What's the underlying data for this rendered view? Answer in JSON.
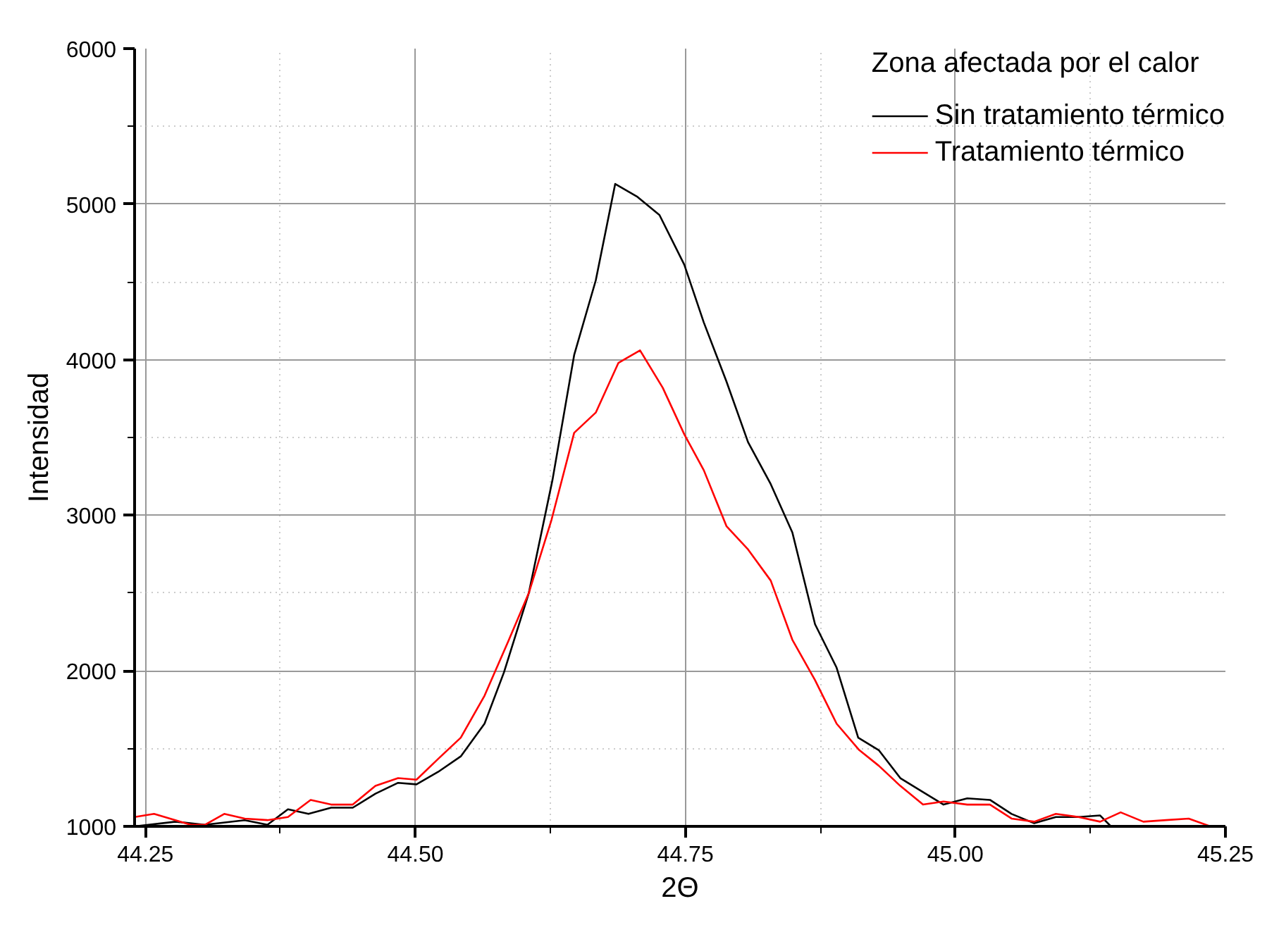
{
  "chart_data": {
    "type": "line",
    "xlabel": "2Θ",
    "ylabel": "Intensidad",
    "legend_title": "Zona afectada por el calor",
    "xlim": [
      44.24,
      45.25
    ],
    "ylim": [
      1000,
      6000
    ],
    "xticks": [
      {
        "value": 44.25,
        "label": "44.25"
      },
      {
        "value": 44.5,
        "label": "44.50"
      },
      {
        "value": 44.75,
        "label": "44.75"
      },
      {
        "value": 45.0,
        "label": "45.00"
      },
      {
        "value": 45.25,
        "label": "45.25"
      }
    ],
    "yticks": [
      1000,
      2000,
      3000,
      4000,
      5000,
      6000
    ],
    "grid": true,
    "legend": "top right",
    "marker": "none",
    "line_style": "solid",
    "series": [
      {
        "name": "Sin tratamiento térmico",
        "color": "#000000",
        "x": [
          44.24,
          44.278,
          44.305,
          44.342,
          44.363,
          44.382,
          44.401,
          44.422,
          44.442,
          44.463,
          44.484,
          44.501,
          44.521,
          44.542,
          44.564,
          44.582,
          44.605,
          44.627,
          44.647,
          44.667,
          44.685,
          44.705,
          44.726,
          44.749,
          44.767,
          44.788,
          44.808,
          44.829,
          44.849,
          44.87,
          44.89,
          44.91,
          44.929,
          44.949,
          44.97,
          44.989,
          45.011,
          45.032,
          45.052,
          45.073,
          45.093,
          45.114,
          45.134,
          45.144,
          45.25
        ],
        "values": [
          1000,
          1030,
          1010,
          1040,
          1010,
          1110,
          1080,
          1120,
          1120,
          1210,
          1280,
          1270,
          1350,
          1450,
          1660,
          1990,
          2500,
          3230,
          4030,
          4510,
          5130,
          5050,
          4930,
          4610,
          4240,
          3860,
          3470,
          3200,
          2890,
          2300,
          2020,
          1570,
          1490,
          1310,
          1220,
          1140,
          1180,
          1170,
          1080,
          1020,
          1060,
          1060,
          1070,
          1000,
          1000
        ]
      },
      {
        "name": "Tratamiento térmico",
        "color": "#ff0000",
        "x": [
          44.24,
          44.258,
          44.292,
          44.305,
          44.323,
          44.342,
          44.363,
          44.382,
          44.403,
          44.422,
          44.442,
          44.463,
          44.484,
          44.501,
          44.522,
          44.542,
          44.564,
          44.586,
          44.605,
          44.626,
          44.647,
          44.667,
          44.688,
          44.708,
          44.729,
          44.749,
          44.767,
          44.788,
          44.808,
          44.829,
          44.849,
          44.87,
          44.89,
          44.911,
          44.929,
          44.949,
          44.97,
          44.989,
          45.011,
          45.032,
          45.052,
          45.073,
          45.093,
          45.114,
          45.134,
          45.153,
          45.174,
          45.195,
          45.216,
          45.236
        ],
        "values": [
          1060,
          1080,
          1010,
          1010,
          1080,
          1050,
          1040,
          1060,
          1170,
          1140,
          1140,
          1260,
          1310,
          1300,
          1440,
          1570,
          1840,
          2190,
          2500,
          2970,
          3530,
          3660,
          3980,
          4060,
          3820,
          3520,
          3290,
          2930,
          2780,
          2580,
          2200,
          1940,
          1660,
          1490,
          1390,
          1260,
          1140,
          1160,
          1140,
          1140,
          1050,
          1030,
          1080,
          1060,
          1030,
          1090,
          1030,
          1040,
          1050,
          1000
        ]
      }
    ]
  }
}
